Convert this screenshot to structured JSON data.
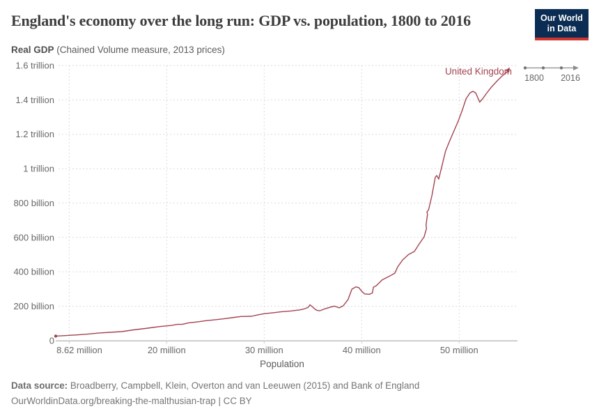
{
  "header": {
    "title": "England's economy over the long run: GDP vs. population, 1800 to 2016",
    "logo": {
      "line1": "Our World",
      "line2": "in Data"
    }
  },
  "subtitle": {
    "bold": "Real GDP",
    "rest": " (Chained Volume measure, 2013 prices)"
  },
  "timeline": {
    "start": "1800",
    "end": "2016"
  },
  "footer": {
    "source_label": "Data source:",
    "source_text": " Broadberry, Campbell, Klein, Overton and van Leeuwen (2015) and Bank of England",
    "link": "OurWorldinData.org/breaking-the-malthusian-trap",
    "license": " | CC BY"
  },
  "chart_data": {
    "type": "line",
    "title": "England's economy over the long run: GDP vs. population, 1800 to 2016",
    "xlabel": "Population",
    "ylabel": "Real GDP (Chained Volume measure, 2013 prices)",
    "series_label": "United Kingdom",
    "line_color": "#a2434f",
    "grid": true,
    "xlim_population_millions": [
      8.62,
      55.5
    ],
    "ylim_gdp_billions": [
      0,
      1600
    ],
    "x_ticks": [
      "8.62 million",
      "20 million",
      "30 million",
      "40 million",
      "50 million"
    ],
    "y_ticks": [
      "0",
      "200 billion",
      "400 billion",
      "600 billion",
      "800 billion",
      "1 trillion",
      "1.2 trillion",
      "1.4 trillion",
      "1.6 trillion"
    ],
    "time_range": {
      "start_year": 1800,
      "end_year": 2016
    },
    "units": {
      "x": "population in millions of people",
      "y": "real GDP in billions (2013 prices)"
    },
    "points": [
      [
        8.62,
        26
      ],
      [
        9.3,
        28
      ],
      [
        10.8,
        33
      ],
      [
        12.0,
        38
      ],
      [
        13.1,
        44
      ],
      [
        14.2,
        48
      ],
      [
        15.4,
        52
      ],
      [
        16.6,
        62
      ],
      [
        17.8,
        70
      ],
      [
        18.6,
        76
      ],
      [
        19.4,
        82
      ],
      [
        20.5,
        88
      ],
      [
        21.1,
        94
      ],
      [
        21.6,
        94
      ],
      [
        22.2,
        102
      ],
      [
        23.2,
        109
      ],
      [
        24.1,
        116
      ],
      [
        25.0,
        121
      ],
      [
        25.8,
        126
      ],
      [
        26.7,
        133
      ],
      [
        27.6,
        140
      ],
      [
        28.7,
        141
      ],
      [
        29.4,
        150
      ],
      [
        30.1,
        157
      ],
      [
        31.0,
        162
      ],
      [
        31.7,
        167
      ],
      [
        32.7,
        172
      ],
      [
        33.6,
        178
      ],
      [
        34.1,
        184
      ],
      [
        34.5,
        192
      ],
      [
        34.7,
        208
      ],
      [
        34.9,
        198
      ],
      [
        35.2,
        183
      ],
      [
        35.4,
        176
      ],
      [
        35.7,
        173
      ],
      [
        36.2,
        184
      ],
      [
        36.9,
        196
      ],
      [
        37.2,
        200
      ],
      [
        37.7,
        190
      ],
      [
        38.1,
        202
      ],
      [
        38.6,
        238
      ],
      [
        39.0,
        299
      ],
      [
        39.4,
        312
      ],
      [
        39.7,
        308
      ],
      [
        40.0,
        287
      ],
      [
        40.3,
        271
      ],
      [
        40.8,
        269
      ],
      [
        41.1,
        277
      ],
      [
        41.2,
        310
      ],
      [
        41.5,
        319
      ],
      [
        42.1,
        353
      ],
      [
        42.8,
        373
      ],
      [
        43.4,
        392
      ],
      [
        43.7,
        429
      ],
      [
        44.2,
        469
      ],
      [
        44.8,
        500
      ],
      [
        45.4,
        518
      ],
      [
        45.9,
        562
      ],
      [
        46.4,
        603
      ],
      [
        46.65,
        652
      ],
      [
        46.6,
        672
      ],
      [
        46.75,
        733
      ],
      [
        46.7,
        748
      ],
      [
        46.86,
        761
      ],
      [
        47.2,
        842
      ],
      [
        47.55,
        950
      ],
      [
        47.7,
        960
      ],
      [
        47.9,
        939
      ],
      [
        48.2,
        1008
      ],
      [
        48.6,
        1102
      ],
      [
        49.0,
        1158
      ],
      [
        49.4,
        1211
      ],
      [
        49.9,
        1276
      ],
      [
        50.3,
        1337
      ],
      [
        50.7,
        1406
      ],
      [
        51.1,
        1440
      ],
      [
        51.4,
        1450
      ],
      [
        51.7,
        1440
      ],
      [
        52.0,
        1401
      ],
      [
        52.1,
        1387
      ],
      [
        52.4,
        1406
      ],
      [
        52.8,
        1438
      ],
      [
        53.3,
        1474
      ],
      [
        53.9,
        1511
      ],
      [
        54.4,
        1539
      ],
      [
        54.9,
        1562
      ],
      [
        55.0,
        1572
      ]
    ]
  }
}
